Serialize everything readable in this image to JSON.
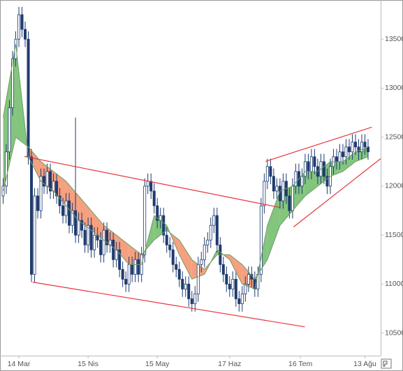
{
  "chart_data": {
    "type": "candlestick",
    "x": [
      -5,
      -4,
      -3,
      -2,
      -1,
      0,
      1,
      2,
      3,
      4,
      5,
      6,
      7,
      8,
      9,
      10,
      11,
      12,
      13,
      14,
      15,
      16,
      17,
      18,
      19,
      20,
      21,
      22,
      23,
      24,
      25,
      26,
      27,
      28,
      29,
      30,
      31,
      32,
      33,
      34,
      35,
      36,
      37,
      38,
      39,
      40,
      41,
      42,
      43,
      44,
      45,
      46,
      47,
      48,
      49,
      50,
      51,
      52,
      53,
      54,
      55,
      56,
      57,
      58,
      59,
      60,
      61,
      62,
      63,
      64,
      65,
      66,
      67,
      68,
      69,
      70,
      71,
      72,
      73,
      74,
      75,
      76,
      77,
      78,
      79,
      80,
      81,
      82,
      83,
      84,
      85,
      86,
      87,
      88,
      89,
      90,
      91,
      92,
      93,
      94,
      95,
      96,
      97,
      98,
      99,
      100,
      101,
      102,
      103,
      104,
      105,
      106,
      107,
      108,
      109,
      110,
      111
    ],
    "open": [
      11900,
      12000,
      12350,
      12800,
      13300,
      13500,
      13750,
      13600,
      13500,
      12300,
      11100,
      11900,
      11750,
      12100,
      12000,
      12150,
      11950,
      12050,
      11900,
      11800,
      11700,
      11850,
      11600,
      11750,
      11500,
      11650,
      11550,
      11400,
      11600,
      11350,
      11500,
      11450,
      11300,
      11550,
      11400,
      11450,
      11250,
      11350,
      11150,
      11050,
      11000,
      11200,
      11100,
      11250,
      11100,
      11300,
      12000,
      12050,
      11950,
      11800,
      11650,
      11700,
      11500,
      11400,
      11350,
      11200,
      11150,
      11050,
      10950,
      11000,
      10850,
      10800,
      10900,
      11200,
      11250,
      11400,
      11450,
      11600,
      11700,
      11400,
      11200,
      11100,
      11000,
      10950,
      11050,
      10850,
      10800,
      10900,
      11000,
      11100,
      11050,
      10950,
      11100,
      11800,
      12050,
      12200,
      12100,
      11950,
      12000,
      11850,
      12050,
      11900,
      11750,
      12000,
      12150,
      12000,
      12100,
      12250,
      12150,
      12300,
      12200,
      12100,
      12250,
      12100,
      12000,
      12200,
      12300,
      12250,
      12350,
      12300,
      12400,
      12350,
      12450,
      12400,
      12350,
      12450,
      12400
    ],
    "high": [
      12080,
      12430,
      12880,
      13380,
      13580,
      13830,
      13830,
      13680,
      13580,
      12380,
      11980,
      11980,
      12180,
      12180,
      12230,
      12230,
      12130,
      12130,
      11980,
      11880,
      11930,
      11930,
      11830,
      12700,
      11730,
      11730,
      11630,
      11680,
      11680,
      11580,
      11580,
      11530,
      11630,
      11630,
      11530,
      11530,
      11430,
      11430,
      11230,
      11130,
      11280,
      11280,
      11330,
      11330,
      11380,
      12080,
      12130,
      12130,
      12030,
      11880,
      11780,
      11780,
      11580,
      11480,
      11430,
      11280,
      11230,
      11130,
      11080,
      11080,
      10930,
      10980,
      11280,
      11330,
      11480,
      11530,
      11680,
      11780,
      11780,
      11480,
      11280,
      11180,
      11080,
      11130,
      11130,
      10930,
      10980,
      11080,
      11180,
      11180,
      11130,
      11180,
      11880,
      12130,
      12280,
      12280,
      12180,
      12080,
      12080,
      12130,
      12130,
      11980,
      12080,
      12230,
      12230,
      12180,
      12330,
      12330,
      12380,
      12380,
      12280,
      12330,
      12330,
      12180,
      12280,
      12380,
      12380,
      12430,
      12430,
      12480,
      12480,
      12530,
      12530,
      12480,
      12530,
      12530,
      12480
    ],
    "low": [
      11820,
      11920,
      12270,
      12720,
      13220,
      13420,
      13520,
      13420,
      12220,
      11020,
      11020,
      11670,
      11670,
      11920,
      11920,
      11870,
      11870,
      11820,
      11720,
      11620,
      11620,
      11520,
      11520,
      11420,
      11420,
      11470,
      11320,
      11320,
      11270,
      11270,
      11370,
      11220,
      11220,
      11320,
      11320,
      11170,
      11170,
      11070,
      10970,
      10920,
      10920,
      11020,
      11020,
      11020,
      11020,
      11220,
      11920,
      11870,
      11720,
      11570,
      11570,
      11420,
      11320,
      11270,
      11120,
      11070,
      10970,
      10870,
      10870,
      10770,
      10720,
      10720,
      10820,
      11120,
      11170,
      11320,
      11370,
      11520,
      11320,
      11120,
      11020,
      10920,
      10870,
      10870,
      10770,
      10720,
      10720,
      10820,
      10920,
      10970,
      10870,
      10870,
      11020,
      11720,
      11970,
      12020,
      11870,
      11870,
      11770,
      11770,
      11820,
      11670,
      11670,
      11920,
      11920,
      11920,
      12020,
      12070,
      12070,
      12120,
      12020,
      12020,
      12020,
      11920,
      11920,
      12120,
      12170,
      12170,
      12220,
      12220,
      12270,
      12270,
      12320,
      12270,
      12270,
      12320,
      12270
    ],
    "close": [
      12000,
      12350,
      12800,
      13300,
      13500,
      13750,
      13600,
      13500,
      12300,
      11100,
      11900,
      11750,
      12100,
      12000,
      12150,
      11950,
      12050,
      11900,
      11800,
      11700,
      11850,
      11600,
      11750,
      11500,
      11650,
      11550,
      11400,
      11600,
      11350,
      11500,
      11450,
      11300,
      11550,
      11400,
      11450,
      11250,
      11350,
      11150,
      11050,
      11000,
      11200,
      11100,
      11250,
      11100,
      11300,
      12000,
      12050,
      11950,
      11800,
      11650,
      11700,
      11500,
      11400,
      11350,
      11200,
      11150,
      11050,
      10950,
      11000,
      10850,
      10800,
      10900,
      11200,
      11250,
      11400,
      11450,
      11600,
      11700,
      11400,
      11200,
      11100,
      11000,
      10950,
      11050,
      10850,
      10800,
      10900,
      11000,
      11100,
      11050,
      10950,
      11100,
      11800,
      12050,
      12200,
      12100,
      11950,
      12000,
      11850,
      12050,
      11900,
      11750,
      12000,
      12150,
      12000,
      12100,
      12250,
      12150,
      12300,
      12200,
      12100,
      12250,
      12100,
      12000,
      12200,
      12300,
      12250,
      12350,
      12300,
      12400,
      12350,
      12450,
      12400,
      12350,
      12450,
      12400,
      12350
    ],
    "up_color": "#ffffff",
    "down_color": "#1f3b70",
    "edge_color": "#1f3b70",
    "band": {
      "x": [
        -5,
        -1,
        3,
        7,
        11,
        15,
        19,
        23,
        27,
        31,
        35,
        39,
        43,
        47,
        51,
        55,
        59,
        63,
        67,
        71,
        75,
        79,
        83,
        87,
        91,
        95,
        99,
        103,
        107,
        111
      ],
      "fast": [
        12700,
        13450,
        12300,
        12050,
        11950,
        11800,
        11650,
        11550,
        11450,
        11350,
        11200,
        11200,
        11700,
        11600,
        11300,
        11050,
        11100,
        11350,
        11250,
        11000,
        10950,
        11600,
        11950,
        12000,
        12150,
        12150,
        12250,
        12250,
        12350,
        12400
      ],
      "slow": [
        11950,
        12500,
        12400,
        12250,
        12150,
        12050,
        11900,
        11750,
        11600,
        11500,
        11400,
        11300,
        11450,
        11550,
        11450,
        11250,
        11150,
        11300,
        11300,
        11200,
        11050,
        11250,
        11600,
        11750,
        11900,
        12000,
        12100,
        12150,
        12250,
        12300
      ],
      "up_color": "#84c57e",
      "down_color": "#f5a07f",
      "line_color": "#6f9c6a"
    },
    "trendlines": [
      {
        "x": [
          1.8,
          82.9
        ],
        "y": [
          12303,
          11783
        ]
      },
      {
        "x": [
          4.4,
          90.9
        ],
        "y": [
          11020,
          10564
        ]
      },
      {
        "x": [
          78.4,
          112.2
        ],
        "y": [
          12253,
          12602
        ]
      },
      {
        "x": [
          87.3,
          115
        ],
        "y": [
          11583,
          12281
        ]
      }
    ],
    "trendline_color": "#e8343c",
    "xlim": [
      -6,
      115
    ],
    "ylim": [
      10270,
      13900
    ],
    "xticks": [
      {
        "value": 0,
        "label": "14 Mar"
      },
      {
        "value": 22,
        "label": "15 Nis"
      },
      {
        "value": 44,
        "label": "15 May"
      },
      {
        "value": 67,
        "label": "17 Haz"
      },
      {
        "value": 89.5,
        "label": "16 Tem"
      },
      {
        "value": 110,
        "label": "13 Ağu"
      }
    ],
    "yticks": [
      10500,
      11000,
      11500,
      12000,
      12500,
      13000,
      13500
    ],
    "grid": false
  }
}
